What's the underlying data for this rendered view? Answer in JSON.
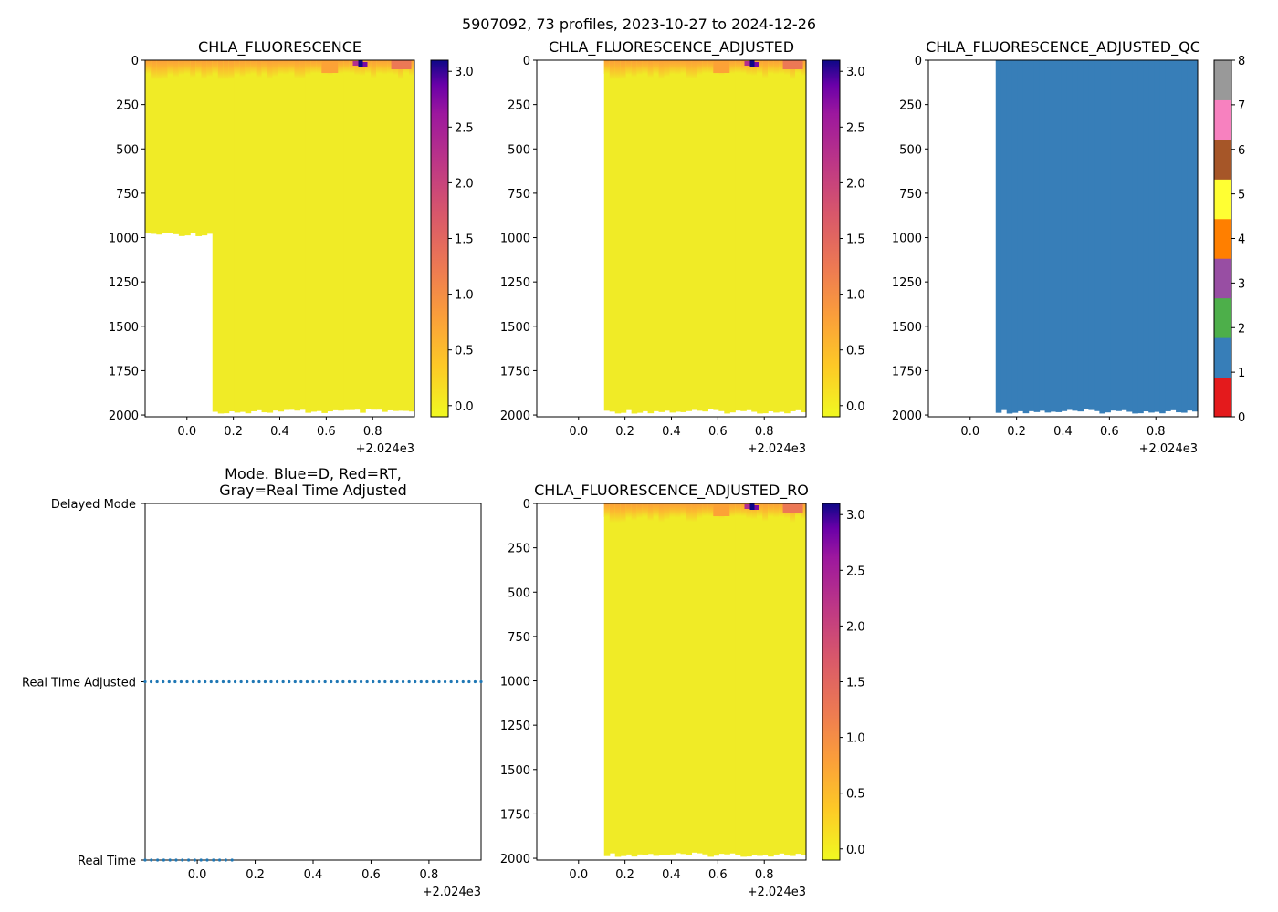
{
  "suptitle": "5907092, 73 profiles, 2023-10-27 to 2024-12-26",
  "colors": {
    "yellow": "#f0eb26",
    "orange": "#fca236",
    "salmon": "#ec7855",
    "magenta": "#b42e8e",
    "purple": "#7a0aa4",
    "navy": "#0d0887",
    "qc_blue": "#377eb8"
  },
  "chart_data": [
    {
      "id": "chla",
      "type": "heatmap",
      "title": "CHLA_FLUORESCENCE",
      "x_ticks": [
        "0.0",
        "0.2",
        "0.4",
        "0.6",
        "0.8"
      ],
      "x_offset": "+2.024e3",
      "xlim": [
        -0.18,
        0.98
      ],
      "y_ticks": [
        "0",
        "250",
        "500",
        "750",
        "1000",
        "1250",
        "1500",
        "1750",
        "2000"
      ],
      "ylim": [
        2010,
        0
      ],
      "colorbar": {
        "ticks": [
          "0.0",
          "0.5",
          "1.0",
          "1.5",
          "2.0",
          "2.5",
          "3.0"
        ],
        "range": [
          -0.1,
          3.1
        ],
        "colormap": "plasma_r"
      },
      "data_regions": [
        {
          "x_start": -0.18,
          "x_end": 0.11,
          "depth_max": 980
        },
        {
          "x_start": 0.11,
          "x_end": 0.98,
          "depth_max": 1980
        }
      ]
    },
    {
      "id": "chla_adj",
      "type": "heatmap",
      "title": "CHLA_FLUORESCENCE_ADJUSTED",
      "x_ticks": [
        "0.0",
        "0.2",
        "0.4",
        "0.6",
        "0.8"
      ],
      "x_offset": "+2.024e3",
      "xlim": [
        -0.18,
        0.98
      ],
      "y_ticks": [
        "0",
        "250",
        "500",
        "750",
        "1000",
        "1250",
        "1500",
        "1750",
        "2000"
      ],
      "ylim": [
        2010,
        0
      ],
      "colorbar": {
        "ticks": [
          "0.0",
          "0.5",
          "1.0",
          "1.5",
          "2.0",
          "2.5",
          "3.0"
        ],
        "range": [
          -0.1,
          3.1
        ],
        "colormap": "plasma_r"
      },
      "data_regions": [
        {
          "x_start": 0.11,
          "x_end": 0.98,
          "depth_max": 1980
        }
      ]
    },
    {
      "id": "chla_adj_qc",
      "type": "heatmap",
      "title": "CHLA_FLUORESCENCE_ADJUSTED_QC",
      "x_ticks": [
        "0.0",
        "0.2",
        "0.4",
        "0.6",
        "0.8"
      ],
      "x_offset": "+2.024e3",
      "xlim": [
        -0.18,
        0.98
      ],
      "y_ticks": [
        "0",
        "250",
        "500",
        "750",
        "1000",
        "1250",
        "1500",
        "1750",
        "2000"
      ],
      "ylim": [
        2010,
        0
      ],
      "colorbar": {
        "ticks": [
          "0",
          "1",
          "2",
          "3",
          "4",
          "5",
          "6",
          "7",
          "8"
        ],
        "range": [
          0,
          8
        ],
        "colormap": "qc_categorical",
        "colors": [
          "#e41a1c",
          "#377eb8",
          "#4daf4a",
          "#984ea3",
          "#ff7f00",
          "#ffff33",
          "#a65628",
          "#f781bf",
          "#999999"
        ]
      },
      "qc_value": 1,
      "data_regions": [
        {
          "x_start": 0.11,
          "x_end": 0.98,
          "depth_max": 1980
        }
      ]
    },
    {
      "id": "mode",
      "type": "scatter",
      "title": "Mode. Blue=D, Red=RT,\nGray=Real Time Adjusted",
      "x_ticks": [
        "0.0",
        "0.2",
        "0.4",
        "0.6",
        "0.8"
      ],
      "x_offset": "+2.024e3",
      "xlim": [
        -0.18,
        0.98
      ],
      "y_categories": [
        "Delayed Mode",
        "Real Time Adjusted",
        "Real Time"
      ],
      "series": [
        {
          "name": "Real Time Adjusted",
          "x_start": -0.18,
          "x_end": 0.98,
          "n_points": 57
        },
        {
          "name": "Real Time",
          "x_start": -0.18,
          "x_end": 0.12,
          "n_points": 15
        }
      ]
    },
    {
      "id": "chla_adj_ro",
      "type": "heatmap",
      "title": "CHLA_FLUORESCENCE_ADJUSTED_RO",
      "x_ticks": [
        "0.0",
        "0.2",
        "0.4",
        "0.6",
        "0.8"
      ],
      "x_offset": "+2.024e3",
      "xlim": [
        -0.18,
        0.98
      ],
      "y_ticks": [
        "0",
        "250",
        "500",
        "750",
        "1000",
        "1250",
        "1500",
        "1750",
        "2000"
      ],
      "ylim": [
        2010,
        0
      ],
      "colorbar": {
        "ticks": [
          "0.0",
          "0.5",
          "1.0",
          "1.5",
          "2.0",
          "2.5",
          "3.0"
        ],
        "range": [
          -0.1,
          3.1
        ],
        "colormap": "plasma_r"
      },
      "data_regions": [
        {
          "x_start": 0.11,
          "x_end": 0.98,
          "depth_max": 1980
        }
      ]
    }
  ]
}
